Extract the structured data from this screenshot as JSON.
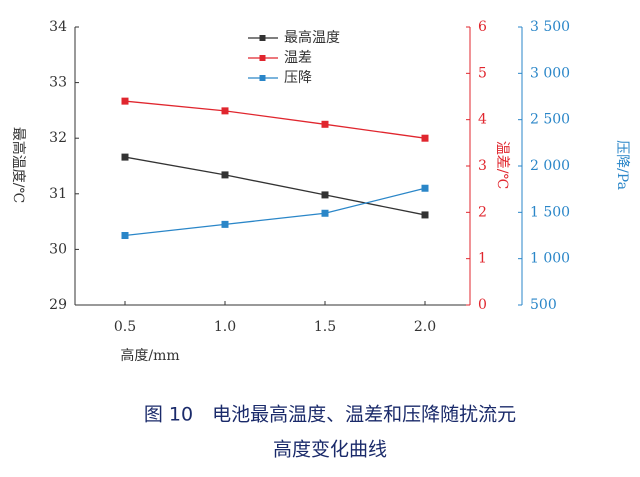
{
  "chart_data": {
    "type": "line",
    "x_label": "高度/mm",
    "y_label": "最高温度/℃",
    "y2_label": "温差/℃",
    "y3_label": "压降/Pa",
    "x": [
      0.5,
      1.0,
      1.5,
      2.0
    ],
    "xlim": [
      0.25,
      2.25
    ],
    "xticks": [
      0.5,
      {
        "value": 1,
        "label": "1.0"
      },
      1.5,
      {
        "value": 2,
        "label": "2.0"
      }
    ],
    "ylim": [
      29,
      34
    ],
    "yticks": [
      29,
      30,
      31,
      32,
      33,
      34
    ],
    "y2lim": [
      0,
      6
    ],
    "y2ticks": [
      0,
      1,
      2,
      3,
      4,
      5,
      6
    ],
    "y3lim": [
      500,
      3500
    ],
    "y3ticks": [
      {
        "value": 500,
        "label": "500"
      },
      {
        "value": 1000,
        "label": "1 000"
      },
      {
        "value": 1500,
        "label": "1 500"
      },
      {
        "value": 2000,
        "label": "2 000"
      },
      {
        "value": 2500,
        "label": "2 500"
      },
      {
        "value": 3000,
        "label": "3 000"
      },
      {
        "value": 3500,
        "label": "3 500"
      }
    ],
    "series": [
      {
        "name": "最高温度",
        "color": "#333333",
        "values": [
          31.66,
          31.34,
          30.98,
          30.62
        ]
      },
      {
        "name": "温差",
        "color": "#e0262e",
        "axis": "y2",
        "values": [
          4.4,
          4.19,
          3.9,
          3.6
        ]
      },
      {
        "name": "压降",
        "color": "#2a86c8",
        "axis": "y3",
        "values": [
          1250,
          1370,
          1490,
          1760
        ]
      }
    ],
    "caption": [
      "图 10　电池最高温度、温差和压降随扰流元",
      "高度变化曲线"
    ]
  }
}
